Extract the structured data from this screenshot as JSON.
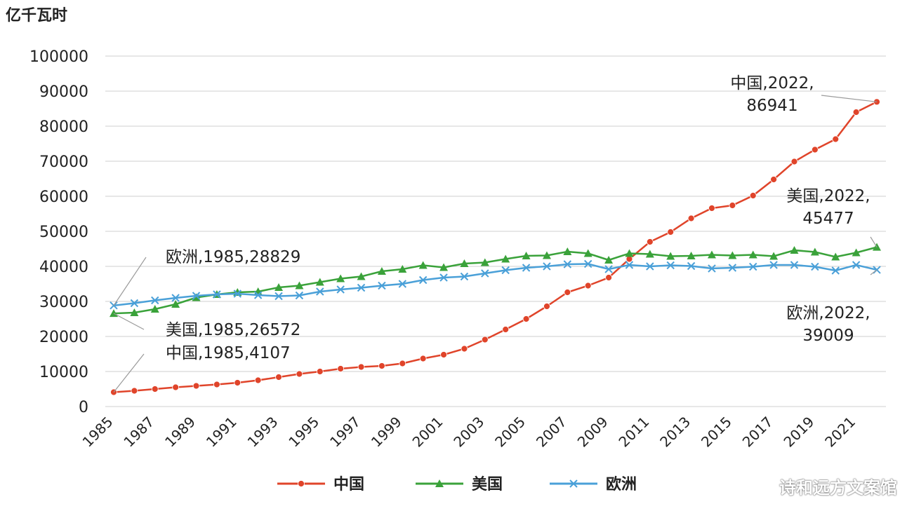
{
  "unit_label": "亿千瓦时",
  "watermark": "诗和远方文案馆",
  "chart_data": {
    "type": "line",
    "ylabel": "亿千瓦时",
    "ylim": [
      0,
      100000
    ],
    "yticks": [
      0,
      10000,
      20000,
      30000,
      40000,
      50000,
      60000,
      70000,
      80000,
      90000,
      100000
    ],
    "ytick_labels": [
      "0",
      "10000",
      "20000",
      "30000",
      "40000",
      "50000",
      "60000",
      "70000",
      "80000",
      "90000",
      "100000"
    ],
    "x": [
      1985,
      1986,
      1987,
      1988,
      1989,
      1990,
      1991,
      1992,
      1993,
      1994,
      1995,
      1996,
      1997,
      1998,
      1999,
      2000,
      2001,
      2002,
      2003,
      2004,
      2005,
      2006,
      2007,
      2008,
      2009,
      2010,
      2011,
      2012,
      2013,
      2014,
      2015,
      2016,
      2017,
      2018,
      2019,
      2020,
      2021,
      2022
    ],
    "xtick_labels": [
      "1985",
      "1987",
      "1989",
      "1991",
      "1993",
      "1995",
      "1997",
      "1999",
      "2001",
      "2003",
      "2005",
      "2007",
      "2009",
      "2011",
      "2013",
      "2015",
      "2017",
      "2019",
      "2021"
    ],
    "series": [
      {
        "name": "中国",
        "color": "#e0442a",
        "marker": "circle",
        "values": [
          4107,
          4500,
          5000,
          5500,
          5900,
          6300,
          6800,
          7500,
          8400,
          9300,
          10000,
          10800,
          11300,
          11600,
          12300,
          13700,
          14800,
          16500,
          19100,
          22000,
          25000,
          28600,
          32600,
          34500,
          36800,
          42100,
          47000,
          49800,
          53700,
          56600,
          57400,
          60200,
          64800,
          69900,
          73300,
          76300,
          84000,
          86941
        ]
      },
      {
        "name": "美国",
        "color": "#3aa23a",
        "marker": "triangle",
        "values": [
          26572,
          26800,
          27800,
          29200,
          31100,
          32000,
          32600,
          32800,
          34000,
          34500,
          35500,
          36500,
          37100,
          38600,
          39200,
          40300,
          39700,
          40800,
          41100,
          42100,
          43000,
          43100,
          44200,
          43700,
          41800,
          43700,
          43500,
          42900,
          43000,
          43300,
          43100,
          43300,
          42900,
          44600,
          44100,
          42700,
          43900,
          45477
        ]
      },
      {
        "name": "欧洲",
        "color": "#4aa0d8",
        "marker": "x",
        "values": [
          28829,
          29500,
          30300,
          31000,
          31600,
          32000,
          32200,
          31800,
          31500,
          31700,
          32800,
          33400,
          33900,
          34500,
          35000,
          36100,
          36800,
          37100,
          38000,
          38900,
          39600,
          40000,
          40600,
          40700,
          39200,
          40400,
          40000,
          40300,
          40100,
          39400,
          39600,
          39900,
          40400,
          40400,
          39900,
          38800,
          40400,
          39009
        ]
      }
    ],
    "annotations": [
      {
        "series": "中国",
        "year": 2022,
        "lines": [
          "中国,2022,",
          "86941"
        ]
      },
      {
        "series": "美国",
        "year": 2022,
        "lines": [
          "美国,2022,",
          "45477"
        ]
      },
      {
        "series": "欧洲",
        "year": 2022,
        "lines": [
          "欧洲,2022,",
          "39009"
        ]
      },
      {
        "series": "欧洲",
        "year": 1985,
        "lines": [
          "欧洲,1985,28829"
        ]
      },
      {
        "series": "美国",
        "year": 1985,
        "lines": [
          "美国,1985,26572"
        ]
      },
      {
        "series": "中国",
        "year": 1985,
        "lines": [
          "中国,1985,4107"
        ]
      }
    ],
    "legend": {
      "placement": "bottom-center",
      "entries": [
        "中国",
        "美国",
        "欧洲"
      ]
    }
  }
}
